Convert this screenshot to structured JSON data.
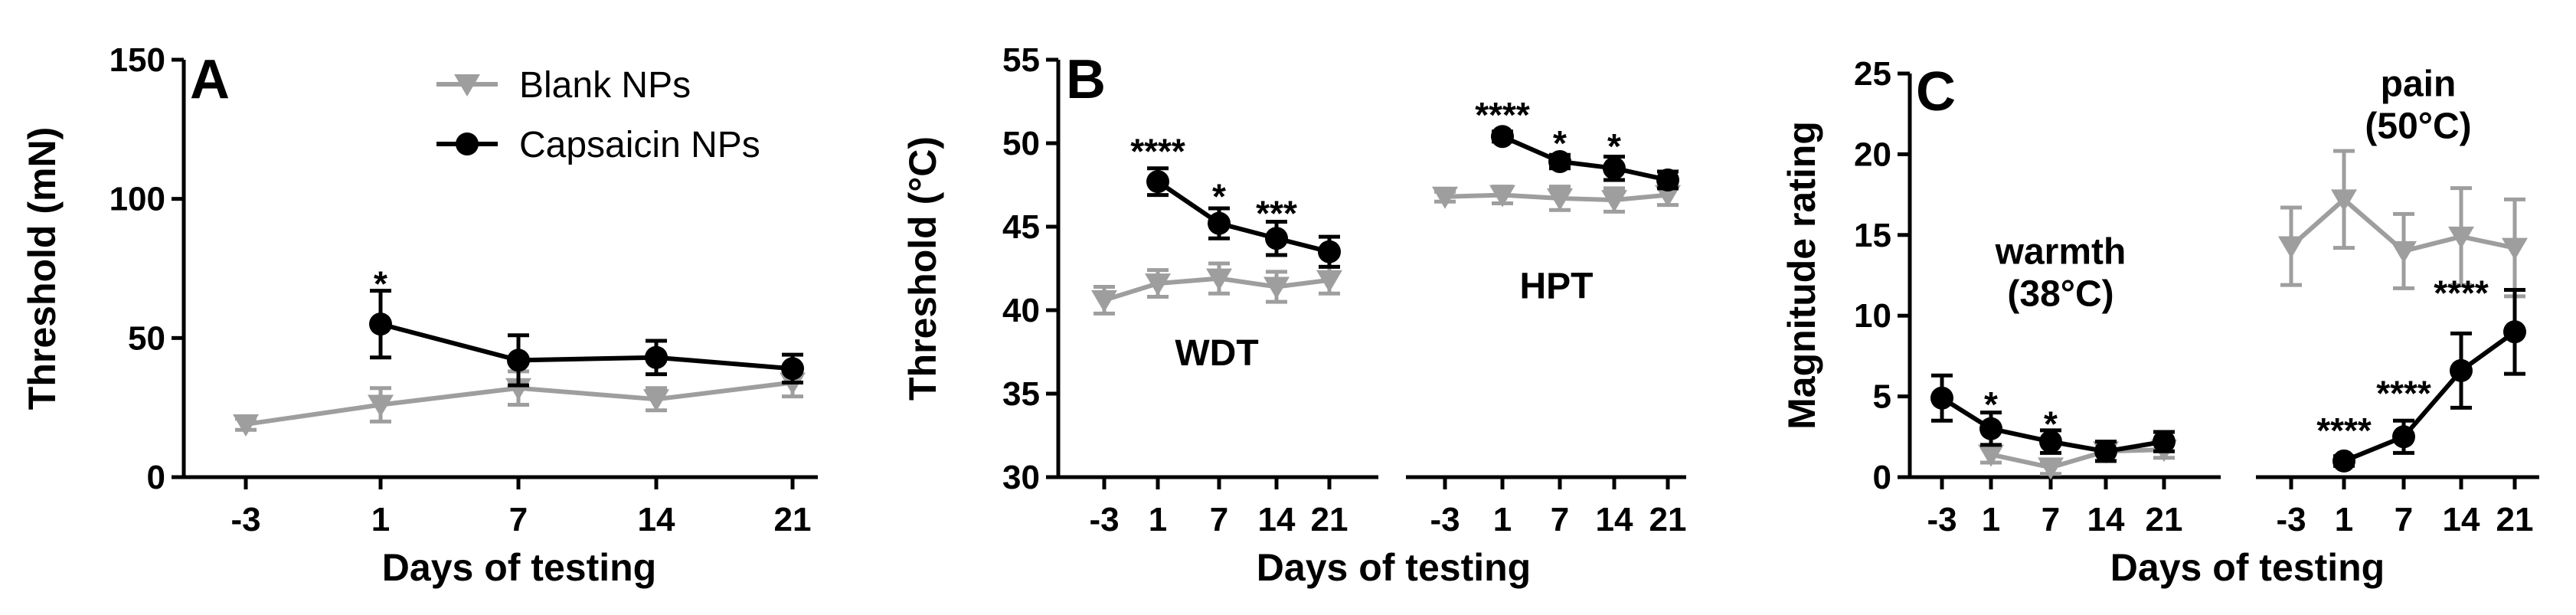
{
  "chart_data": [
    {
      "type": "line",
      "panel": "A",
      "ylabel": "Threshold (mN)",
      "xlabel": "Days of testing",
      "ylim": [
        0,
        150
      ],
      "yticks": [
        "0",
        "50",
        "100",
        "150"
      ],
      "legend": {
        "placement": "top-right",
        "entries": [
          {
            "name": "Blank NPs",
            "marker": "triangle-down",
            "color": "#9e9e9e"
          },
          {
            "name": "Capsaicin NPs",
            "marker": "circle",
            "color": "#000000"
          }
        ]
      },
      "groups": [
        {
          "label": "",
          "categories": [
            "-3",
            "1",
            "7",
            "14",
            "21"
          ],
          "series": [
            {
              "name": "Blank NPs",
              "color": "#9e9e9e",
              "marker": "triangle-down",
              "values": [
                19,
                26,
                32,
                28,
                34
              ],
              "errors": [
                2,
                6,
                6,
                4,
                5
              ]
            },
            {
              "name": "Capsaicin NPs",
              "color": "#000000",
              "marker": "circle",
              "values": [
                null,
                55,
                42,
                43,
                39
              ],
              "errors": [
                null,
                12,
                9,
                6,
                5
              ]
            }
          ],
          "annotations": [
            {
              "category": "1",
              "text": "*",
              "value": 70
            }
          ]
        }
      ]
    },
    {
      "type": "line",
      "panel": "B",
      "ylabel": "Threshold (°C)",
      "xlabel": "Days of testing",
      "ylim": [
        30,
        55
      ],
      "yticks": [
        "30",
        "35",
        "40",
        "45",
        "50",
        "55"
      ],
      "groups": [
        {
          "label": "WDT",
          "label_value": 36.7,
          "categories": [
            "-3",
            "1",
            "7",
            "14",
            "21"
          ],
          "series": [
            {
              "name": "Blank NPs",
              "color": "#9e9e9e",
              "marker": "triangle-down",
              "values": [
                40.6,
                41.6,
                41.9,
                41.4,
                41.8
              ],
              "errors": [
                0.8,
                0.8,
                0.9,
                0.9,
                0.8
              ]
            },
            {
              "name": "Capsaicin NPs",
              "color": "#000000",
              "marker": "circle",
              "values": [
                null,
                47.7,
                45.2,
                44.3,
                43.5
              ],
              "errors": [
                null,
                0.8,
                0.9,
                1.0,
                0.9
              ]
            }
          ],
          "annotations": [
            {
              "category": "1",
              "text": "****",
              "value": 49.6
            },
            {
              "category": "7",
              "text": "*",
              "value": 46.9
            },
            {
              "category": "14",
              "text": "***",
              "value": 45.9
            }
          ]
        },
        {
          "label": "HPT",
          "label_value": 40.7,
          "categories": [
            "-3",
            "1",
            "7",
            "14",
            "21"
          ],
          "series": [
            {
              "name": "Blank NPs",
              "color": "#9e9e9e",
              "marker": "triangle-down",
              "values": [
                46.8,
                46.9,
                46.7,
                46.6,
                46.9
              ],
              "errors": [
                0.3,
                0.5,
                0.7,
                0.7,
                0.6
              ]
            },
            {
              "name": "Capsaicin NPs",
              "color": "#000000",
              "marker": "circle",
              "values": [
                null,
                50.4,
                48.9,
                48.5,
                47.8
              ],
              "errors": [
                null,
                0.3,
                0.4,
                0.7,
                0.5
              ]
            }
          ],
          "annotations": [
            {
              "category": "1",
              "text": "****",
              "value": 51.8
            },
            {
              "category": "7",
              "text": "*",
              "value": 50.1
            },
            {
              "category": "14",
              "text": "*",
              "value": 49.9
            }
          ]
        }
      ]
    },
    {
      "type": "line",
      "panel": "C",
      "ylabel": "Magnitude rating",
      "xlabel": "Days of testing",
      "ylim": [
        0,
        25
      ],
      "yticks": [
        "0",
        "5",
        "10",
        "15",
        "20",
        "25"
      ],
      "groups": [
        {
          "label_lines": [
            "warmth",
            "(38°C)"
          ],
          "label_values": [
            13.2,
            10.6
          ],
          "categories": [
            "-3",
            "1",
            "7",
            "14",
            "21"
          ],
          "series": [
            {
              "name": "Blank NPs",
              "color": "#9e9e9e",
              "marker": "triangle-down",
              "values": [
                null,
                1.4,
                0.6,
                1.6,
                1.7
              ],
              "errors": [
                null,
                0.5,
                0.4,
                0.6,
                0.5
              ]
            },
            {
              "name": "Capsaicin NPs",
              "color": "#000000",
              "marker": "circle",
              "values": [
                4.9,
                3.0,
                2.2,
                1.6,
                2.2
              ],
              "errors": [
                1.4,
                1.0,
                0.7,
                0.6,
                0.6
              ]
            }
          ],
          "annotations": [
            {
              "category": "1",
              "text": "*",
              "value": 4.6
            },
            {
              "category": "7",
              "text": "*",
              "value": 3.4
            }
          ]
        },
        {
          "label_lines": [
            "pain",
            "(50°C)"
          ],
          "label_values": [
            23.6,
            21.0
          ],
          "categories": [
            "-3",
            "1",
            "7",
            "14",
            "21"
          ],
          "series": [
            {
              "name": "Blank NPs",
              "color": "#9e9e9e",
              "marker": "triangle-down",
              "values": [
                14.3,
                17.2,
                14.0,
                14.9,
                14.2
              ],
              "errors": [
                2.4,
                3.0,
                2.3,
                3.0,
                3.0
              ]
            },
            {
              "name": "Capsaicin NPs",
              "color": "#000000",
              "marker": "circle",
              "values": [
                null,
                1.0,
                2.5,
                6.6,
                9.0
              ],
              "errors": [
                null,
                0.3,
                1.0,
                2.3,
                2.6
              ]
            }
          ],
          "annotations": [
            {
              "category": "1",
              "text": "****",
              "value": 3.0
            },
            {
              "category": "7",
              "text": "****",
              "value": 5.3
            },
            {
              "category": "14",
              "text": "****",
              "value": 11.5
            }
          ]
        }
      ]
    }
  ]
}
